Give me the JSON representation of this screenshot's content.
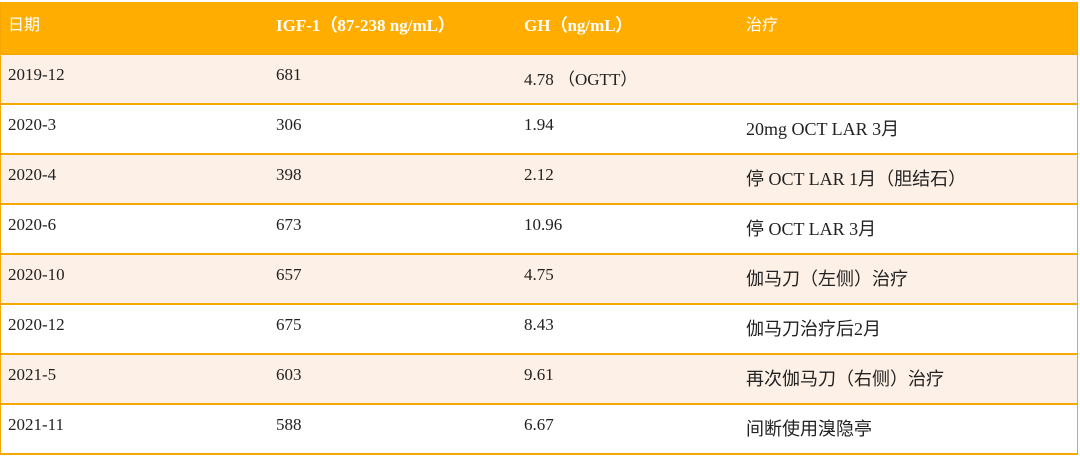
{
  "table": {
    "header": [
      "日期",
      "IGF-1（87-238 ng/mL）",
      "GH（ng/mL）",
      "治疗"
    ],
    "rows": [
      {
        "date": "2019-12",
        "igf1": "681",
        "gh": "4.78 （OGTT）"
      },
      {
        "date": "2020-3",
        "igf1": "306",
        "gh": "1.94",
        "treatment": "20mg OCT LAR 3月"
      },
      {
        "date": "2020-4",
        "igf1": "398",
        "gh": "2.12",
        "treatment": "停 OCT LAR 1月（胆结石）"
      },
      {
        "date": "2020-6",
        "igf1": "673",
        "gh": "10.96",
        "treatment": "停 OCT LAR 3月"
      },
      {
        "date": "2020-10",
        "igf1": "657",
        "gh": "4.75",
        "treatment": "伽马刀（左侧）治疗"
      },
      {
        "date": "2020-12",
        "igf1": "675",
        "gh": "8.43",
        "treatment": "伽马刀治疗后2月"
      },
      {
        "date": "2021-5",
        "igf1": "603",
        "gh": "9.61",
        "treatment": "再次伽马刀（右侧）治疗"
      },
      {
        "date": "2021-11",
        "igf1": "588",
        "gh": "6.67",
        "treatment": "间断使用溴隐亭"
      }
    ]
  }
}
